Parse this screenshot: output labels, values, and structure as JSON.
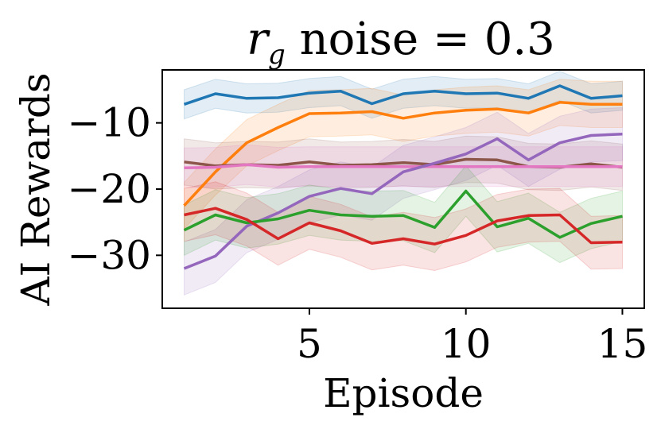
{
  "chart_data": {
    "type": "line",
    "title": "r",
    "title_sub": "g",
    "title_rest": " noise = 0.3",
    "xlabel": "Episode",
    "ylabel": "AI Rewards",
    "xlim": [
      0.3,
      15.7
    ],
    "ylim": [
      -38,
      -2
    ],
    "xticks": [
      5,
      10,
      15
    ],
    "xtick_labels": [
      "5",
      "10",
      "15"
    ],
    "yticks": [
      -10,
      -20,
      -30
    ],
    "ytick_labels": [
      "−10",
      "−20",
      "−30"
    ],
    "x": [
      1,
      2,
      3,
      4,
      5,
      6,
      7,
      8,
      9,
      10,
      11,
      12,
      13,
      14,
      15
    ],
    "series": [
      {
        "name": "blue",
        "color": "#1f77b4",
        "values": [
          -7.2,
          -5.6,
          -6.3,
          -6.2,
          -5.5,
          -5.2,
          -7.1,
          -5.6,
          -5.2,
          -5.6,
          -5.5,
          -6.3,
          -4.4,
          -6.3,
          -5.9
        ],
        "band": 2.2
      },
      {
        "name": "orange",
        "color": "#ff7f0e",
        "values": [
          -22.5,
          -17.4,
          -13.0,
          -10.7,
          -8.6,
          -8.5,
          -8.3,
          -9.3,
          -8.5,
          -8.1,
          -7.9,
          -8.5,
          -6.9,
          -7.2,
          -7.2
        ],
        "band": 3.5
      },
      {
        "name": "brown",
        "color": "#8c564b",
        "values": [
          -15.9,
          -16.5,
          -16.3,
          -16.4,
          -15.9,
          -16.4,
          -16.3,
          -16.0,
          -16.3,
          -15.5,
          -15.6,
          -16.6,
          -16.7,
          -16.2,
          -16.7
        ],
        "band": 3.5
      },
      {
        "name": "pink",
        "color": "#e377c2",
        "values": [
          -16.8,
          -16.7,
          -16.3,
          -16.7,
          -16.6,
          -16.6,
          -16.6,
          -16.6,
          -16.6,
          -16.6,
          -16.6,
          -16.6,
          -16.6,
          -16.6,
          -16.6
        ],
        "band": 3.0
      },
      {
        "name": "purple",
        "color": "#9467bd",
        "values": [
          -32.0,
          -30.1,
          -25.6,
          -23.6,
          -21.1,
          -19.9,
          -20.7,
          -17.4,
          -16.1,
          -14.7,
          -12.4,
          -15.6,
          -13.0,
          -11.9,
          -11.7
        ],
        "band": 4.0
      },
      {
        "name": "green",
        "color": "#2ca02c",
        "values": [
          -26.2,
          -23.9,
          -25.1,
          -24.5,
          -23.2,
          -23.9,
          -24.1,
          -24.0,
          -25.8,
          -20.3,
          -25.7,
          -24.4,
          -27.3,
          -25.2,
          -24.1
        ],
        "band": 3.8
      },
      {
        "name": "red",
        "color": "#d62728",
        "values": [
          -23.9,
          -22.9,
          -24.6,
          -27.5,
          -25.1,
          -26.3,
          -28.2,
          -27.5,
          -28.3,
          -27.0,
          -24.8,
          -24.0,
          -23.9,
          -28.1,
          -28.0
        ],
        "band": 4.0
      }
    ]
  }
}
